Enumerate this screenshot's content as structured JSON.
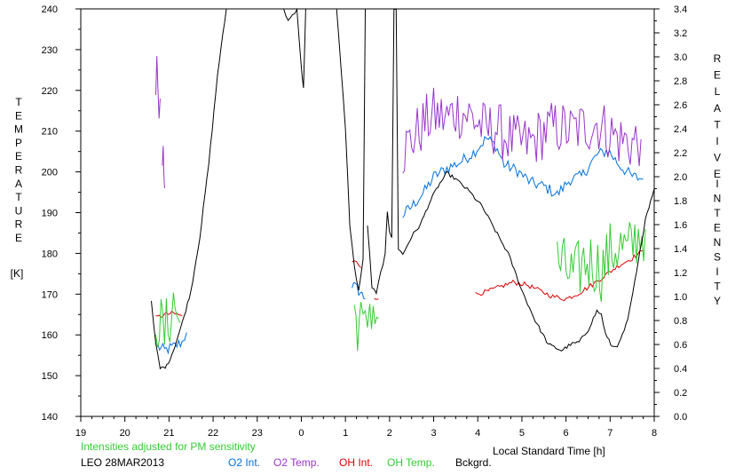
{
  "chart_data": {
    "type": "line",
    "left_axis_label_letters": [
      "T",
      "E",
      "M",
      "P",
      "E",
      "R",
      "A",
      "T",
      "U",
      "R",
      "E"
    ],
    "left_axis_unit": "[K]",
    "right_axis_label_letters_1": [
      "R",
      "E",
      "L",
      "A",
      "T",
      "I",
      "V",
      "E"
    ],
    "right_axis_label_letters_2": [
      "I",
      "N",
      "T",
      "E",
      "N",
      "S",
      "I",
      "T",
      "Y"
    ],
    "xlabel": "Local Standard Time [h]",
    "note": "Intensities adjusted for PM sensitivity",
    "station_date": "LEO 28MAR2013",
    "x_tick_labels": [
      "19",
      "20",
      "21",
      "22",
      "23",
      "0",
      "1",
      "2",
      "3",
      "4",
      "5",
      "6",
      "7",
      "8"
    ],
    "x_range_hours": [
      19,
      32
    ],
    "y_left_ticks": [
      "140",
      "150",
      "160",
      "170",
      "180",
      "190",
      "200",
      "210",
      "220",
      "230",
      "240"
    ],
    "ylim_left": [
      140,
      240
    ],
    "y_right_ticks": [
      "0.0",
      "0.2",
      "0.4",
      "0.6",
      "0.8",
      "1.0",
      "1.2",
      "1.4",
      "1.6",
      "1.8",
      "2.0",
      "2.2",
      "2.4",
      "2.6",
      "2.8",
      "3.0",
      "3.2",
      "3.4"
    ],
    "ylim_right": [
      0,
      3.4
    ],
    "grid": false,
    "series": [
      {
        "name": "O2 Int.",
        "color": "#0070e0",
        "axis": "right",
        "noise": 0.05,
        "segments": [
          [
            [
              20.75,
              0.58
            ],
            [
              20.9,
              0.55
            ],
            [
              21.1,
              0.58
            ],
            [
              21.3,
              0.62
            ],
            [
              21.4,
              0.7
            ]
          ],
          [
            [
              25.15,
              1.1
            ],
            [
              25.3,
              1.05
            ],
            [
              25.45,
              0.98
            ]
          ],
          [
            [
              26.3,
              1.68
            ],
            [
              26.5,
              1.75
            ],
            [
              26.8,
              1.88
            ],
            [
              27.0,
              2.0
            ],
            [
              27.3,
              2.07
            ],
            [
              27.6,
              2.12
            ],
            [
              27.9,
              2.2
            ],
            [
              28.2,
              2.32
            ],
            [
              28.4,
              2.26
            ],
            [
              28.6,
              2.1
            ],
            [
              28.9,
              2.05
            ],
            [
              29.2,
              1.95
            ],
            [
              29.5,
              1.92
            ],
            [
              29.8,
              1.85
            ],
            [
              30.1,
              1.98
            ],
            [
              30.35,
              2.0
            ],
            [
              30.7,
              2.18
            ],
            [
              30.95,
              2.22
            ],
            [
              31.2,
              2.1
            ],
            [
              31.5,
              2.0
            ],
            [
              31.75,
              1.98
            ]
          ]
        ]
      },
      {
        "name": "O2 Temp.",
        "color": "#9933cc",
        "axis": "left",
        "noise": 7,
        "segments": [
          [
            [
              20.7,
              224
            ],
            [
              20.75,
              222
            ],
            [
              20.8,
              218
            ]
          ],
          [
            [
              20.85,
              200
            ],
            [
              20.87,
              212
            ],
            [
              20.9,
              196
            ]
          ],
          [
            [
              26.3,
              205
            ],
            [
              26.5,
              208
            ],
            [
              26.8,
              212
            ],
            [
              27.0,
              214
            ],
            [
              27.3,
              213
            ],
            [
              27.5,
              215
            ],
            [
              27.8,
              214
            ],
            [
              28.0,
              212
            ],
            [
              28.2,
              210
            ],
            [
              28.4,
              211
            ],
            [
              28.6,
              209
            ],
            [
              28.9,
              207
            ],
            [
              29.2,
              207
            ],
            [
              29.5,
              210
            ],
            [
              29.8,
              211
            ],
            [
              30.1,
              210
            ],
            [
              30.4,
              211
            ],
            [
              30.7,
              212
            ],
            [
              30.95,
              210
            ],
            [
              31.2,
              208
            ],
            [
              31.5,
              207
            ],
            [
              31.7,
              208
            ]
          ]
        ]
      },
      {
        "name": "OH Int.",
        "color": "#dd0000",
        "axis": "right",
        "noise": 0.02,
        "segments": [
          [
            [
              20.7,
              0.82
            ],
            [
              20.9,
              0.85
            ],
            [
              21.1,
              0.86
            ],
            [
              21.3,
              0.84
            ]
          ],
          [
            [
              25.15,
              1.28
            ],
            [
              25.25,
              1.3
            ],
            [
              25.35,
              1.24
            ]
          ],
          [
            [
              25.65,
              1.0
            ],
            [
              25.75,
              0.98
            ]
          ],
          [
            [
              27.95,
              1.02
            ],
            [
              28.2,
              1.04
            ],
            [
              28.5,
              1.08
            ],
            [
              28.8,
              1.12
            ],
            [
              29.1,
              1.1
            ],
            [
              29.4,
              1.05
            ],
            [
              29.7,
              1.0
            ],
            [
              30.0,
              0.98
            ],
            [
              30.3,
              1.03
            ],
            [
              30.6,
              1.1
            ],
            [
              30.9,
              1.18
            ],
            [
              31.2,
              1.26
            ],
            [
              31.5,
              1.32
            ],
            [
              31.75,
              1.38
            ]
          ]
        ]
      },
      {
        "name": "OH Temp.",
        "color": "#33cc33",
        "axis": "left",
        "noise": 8,
        "segments": [
          [
            [
              20.7,
              165
            ],
            [
              20.9,
              160
            ],
            [
              21.1,
              168
            ],
            [
              21.25,
              163
            ]
          ],
          [
            [
              25.2,
              165
            ],
            [
              25.35,
              162
            ],
            [
              25.45,
              160
            ],
            [
              25.55,
              168
            ],
            [
              25.75,
              164
            ]
          ],
          [
            [
              29.8,
              178
            ],
            [
              30.0,
              176
            ],
            [
              30.2,
              174
            ],
            [
              30.4,
              178
            ],
            [
              30.6,
              178
            ],
            [
              30.8,
              176
            ],
            [
              31.0,
              180
            ],
            [
              31.2,
              182
            ],
            [
              31.4,
              180
            ],
            [
              31.6,
              184
            ],
            [
              31.8,
              186
            ]
          ]
        ]
      },
      {
        "name": "Bckgrd.",
        "color": "#000000",
        "axis": "right",
        "noise": 0.015,
        "segments": [
          [
            [
              20.6,
              0.95
            ],
            [
              20.7,
              0.6
            ],
            [
              20.8,
              0.4
            ],
            [
              20.95,
              0.42
            ],
            [
              21.1,
              0.55
            ],
            [
              21.3,
              0.78
            ],
            [
              21.5,
              1.05
            ],
            [
              21.7,
              1.5
            ],
            [
              21.9,
              2.1
            ],
            [
              22.1,
              2.85
            ],
            [
              22.3,
              3.4
            ]
          ],
          [
            [
              23.6,
              3.4
            ],
            [
              23.7,
              3.3
            ],
            [
              23.8,
              3.35
            ],
            [
              23.9,
              3.4
            ],
            [
              24.0,
              2.9
            ],
            [
              24.05,
              2.75
            ],
            [
              24.1,
              3.4
            ]
          ],
          [
            [
              24.8,
              3.4
            ],
            [
              24.9,
              2.9
            ],
            [
              25.0,
              2.4
            ],
            [
              25.1,
              1.6
            ],
            [
              25.2,
              1.25
            ],
            [
              25.3,
              1.05
            ],
            [
              25.4,
              1.3
            ],
            [
              25.45,
              3.4
            ]
          ],
          [
            [
              25.5,
              1.6
            ],
            [
              25.6,
              1.08
            ],
            [
              25.7,
              1.02
            ],
            [
              25.8,
              1.2
            ],
            [
              25.9,
              1.35
            ],
            [
              25.95,
              1.7
            ],
            [
              26.0,
              1.55
            ],
            [
              26.05,
              1.5
            ],
            [
              26.1,
              3.4
            ],
            [
              26.15,
              3.4
            ],
            [
              26.2,
              1.4
            ],
            [
              26.3,
              1.35
            ],
            [
              26.5,
              1.5
            ],
            [
              26.7,
              1.6
            ],
            [
              26.9,
              1.78
            ],
            [
              27.1,
              1.92
            ],
            [
              27.3,
              2.03
            ],
            [
              27.5,
              1.98
            ],
            [
              27.8,
              1.88
            ],
            [
              28.1,
              1.75
            ],
            [
              28.4,
              1.55
            ],
            [
              28.7,
              1.35
            ],
            [
              29.0,
              1.05
            ],
            [
              29.3,
              0.8
            ],
            [
              29.6,
              0.6
            ],
            [
              29.9,
              0.55
            ],
            [
              30.1,
              0.6
            ],
            [
              30.3,
              0.62
            ],
            [
              30.5,
              0.72
            ],
            [
              30.7,
              0.88
            ],
            [
              30.8,
              0.85
            ],
            [
              30.9,
              0.68
            ],
            [
              31.05,
              0.58
            ],
            [
              31.2,
              0.6
            ],
            [
              31.4,
              0.8
            ],
            [
              31.6,
              1.2
            ],
            [
              31.8,
              1.65
            ],
            [
              32.0,
              1.9
            ]
          ]
        ]
      }
    ]
  }
}
